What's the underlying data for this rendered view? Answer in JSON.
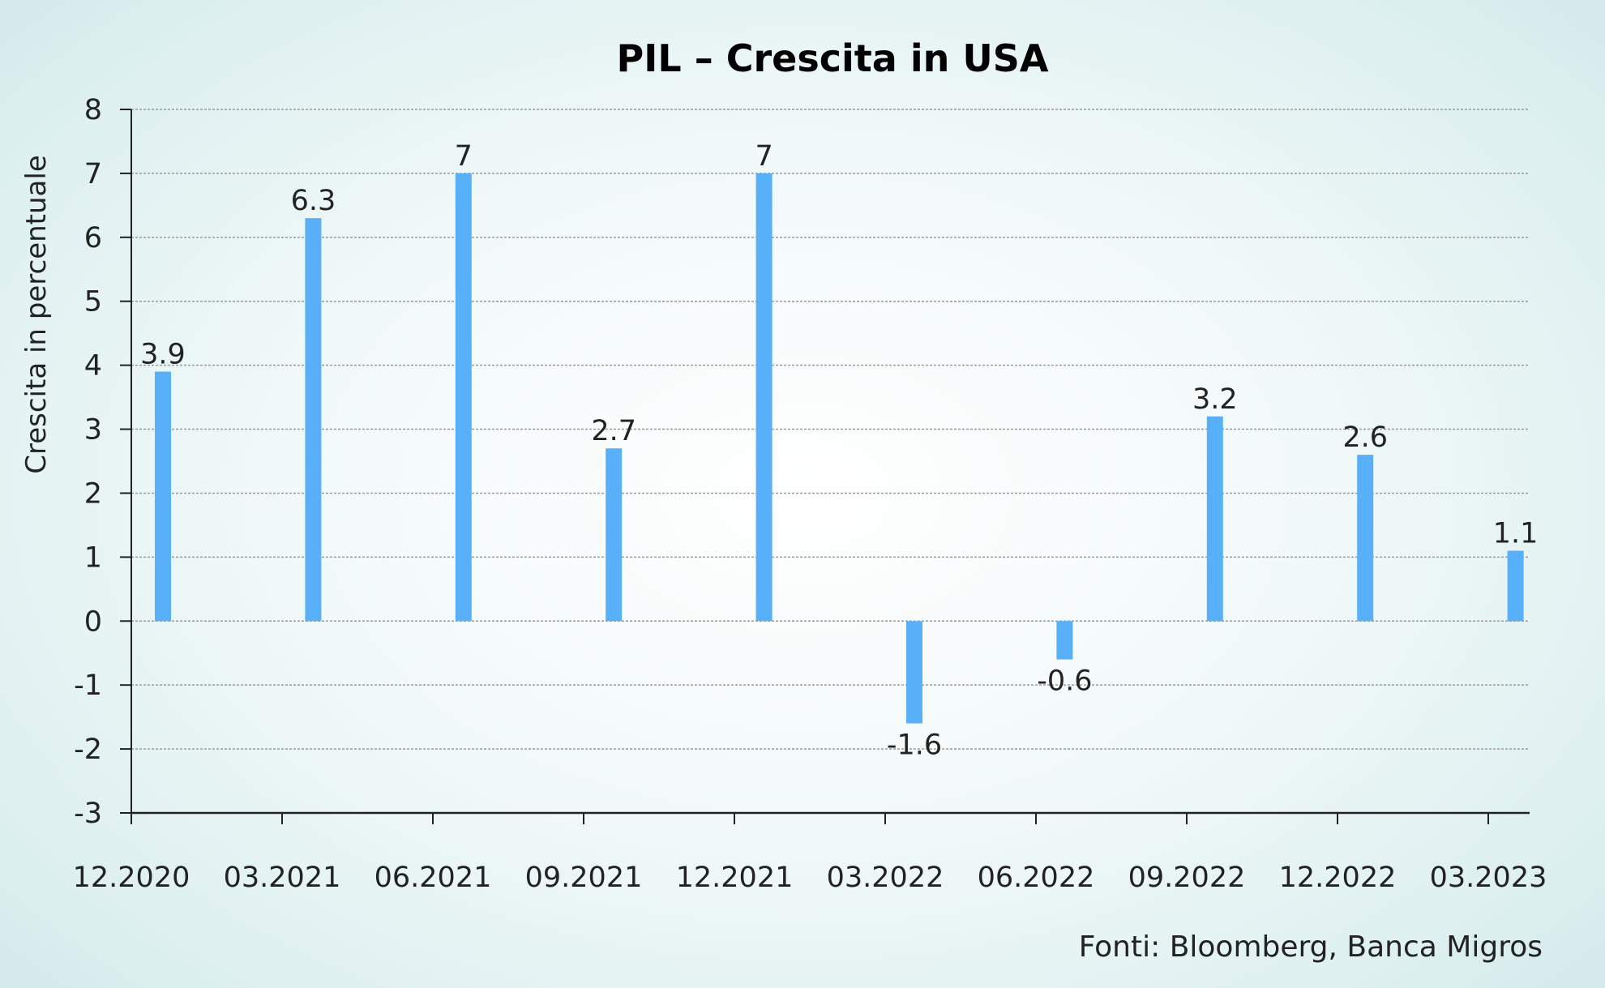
{
  "chart_data": {
    "type": "bar",
    "title": "PIL – Crescita in USA",
    "xlabel": "",
    "ylabel": "Crescita in percentuale",
    "categories": [
      "12.2020",
      "03.2021",
      "06.2021",
      "09.2021",
      "12.2021",
      "03.2022",
      "06.2022",
      "09.2022",
      "12.2022",
      "03.2023"
    ],
    "values": [
      3.9,
      6.3,
      7,
      2.7,
      7,
      -1.6,
      -0.6,
      3.2,
      2.6,
      1.1
    ],
    "value_labels": [
      "3.9",
      "6.3",
      "7",
      "2.7",
      "7",
      "-1.6",
      "-0.6",
      "3.2",
      "2.6",
      "1.1"
    ],
    "ylim": [
      -3,
      8
    ],
    "yticks": [
      "8",
      "7",
      "6",
      "5",
      "4",
      "3",
      "2",
      "1",
      "0",
      "-1",
      "-2",
      "-3"
    ],
    "grid": true,
    "bar_color": "#58b1f8",
    "source": "Fonti: Bloomberg, Banca Migros"
  }
}
